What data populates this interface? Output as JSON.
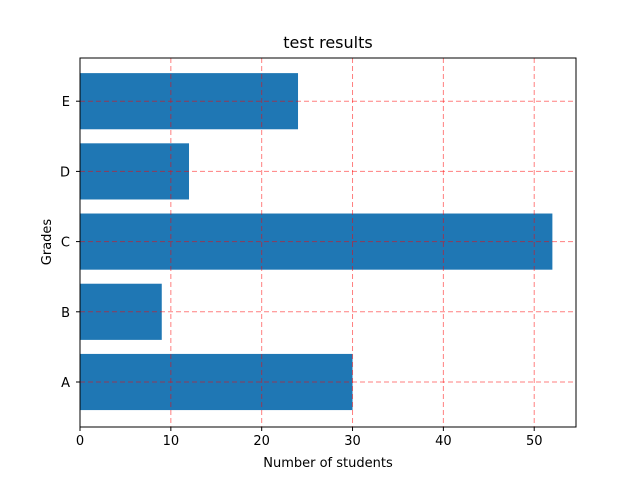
{
  "chart_data": {
    "type": "bar",
    "orientation": "horizontal",
    "title": "test results",
    "xlabel": "Number of students",
    "ylabel": "Grades",
    "categories": [
      "A",
      "B",
      "C",
      "D",
      "E"
    ],
    "values": [
      30,
      9,
      52,
      12,
      24
    ],
    "xlim": [
      0,
      54.6
    ],
    "xticks": [
      0,
      10,
      20,
      30,
      40,
      50
    ],
    "grid": true,
    "grid_style": "dashed",
    "grid_color": "#ff0000",
    "bar_color": "#1f77b4"
  }
}
